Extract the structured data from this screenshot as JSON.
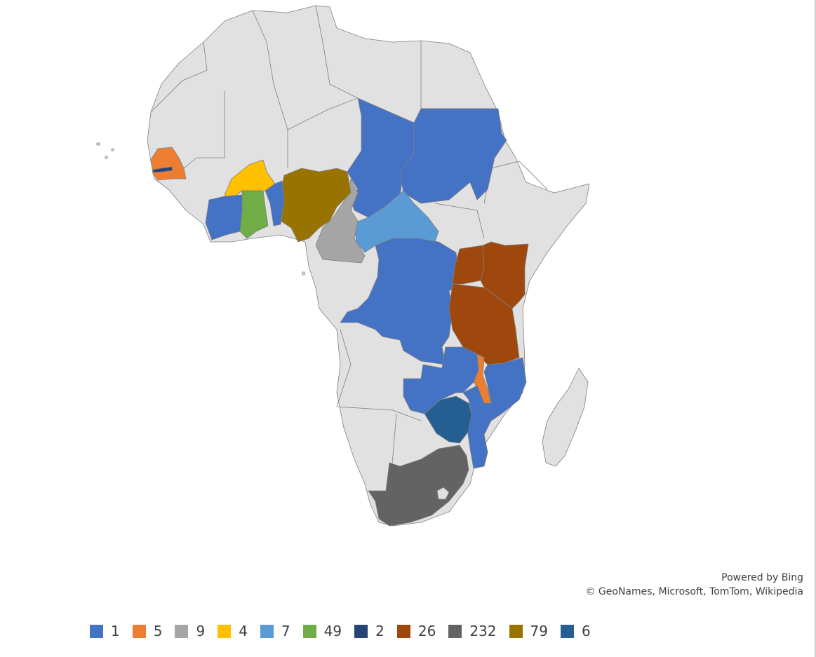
{
  "attribution": {
    "powered_by": "Powered by Bing",
    "copyright": "© GeoNames, Microsoft, TomTom, Wikipedia"
  },
  "colors": {
    "background_land": "#e1e1e1",
    "border": "#7f7f7f"
  },
  "legend": [
    {
      "label": "1",
      "color": "#4472c4"
    },
    {
      "label": "5",
      "color": "#ed7d31"
    },
    {
      "label": "9",
      "color": "#a5a5a5"
    },
    {
      "label": "4",
      "color": "#ffc000"
    },
    {
      "label": "7",
      "color": "#5b9bd5"
    },
    {
      "label": "49",
      "color": "#70ad47"
    },
    {
      "label": "2",
      "color": "#264478"
    },
    {
      "label": "26",
      "color": "#9e480e"
    },
    {
      "label": "232",
      "color": "#636363"
    },
    {
      "label": "79",
      "color": "#997300"
    },
    {
      "label": "6",
      "color": "#255e91"
    }
  ],
  "countries": [
    {
      "name": "Chad",
      "value": "1"
    },
    {
      "name": "Sudan",
      "value": "1"
    },
    {
      "name": "Democratic Republic of the Congo",
      "value": "1"
    },
    {
      "name": "Zambia",
      "value": "1"
    },
    {
      "name": "Mozambique",
      "value": "1"
    },
    {
      "name": "Côte d'Ivoire",
      "value": "1"
    },
    {
      "name": "Benin",
      "value": "1"
    },
    {
      "name": "Senegal",
      "value": "5"
    },
    {
      "name": "Malawi",
      "value": "5"
    },
    {
      "name": "Cameroon",
      "value": "9"
    },
    {
      "name": "Burkina Faso",
      "value": "4"
    },
    {
      "name": "Central African Republic",
      "value": "7"
    },
    {
      "name": "Ghana",
      "value": "49"
    },
    {
      "name": "The Gambia",
      "value": "2"
    },
    {
      "name": "Uganda",
      "value": "26"
    },
    {
      "name": "Kenya",
      "value": "26"
    },
    {
      "name": "Tanzania",
      "value": "26"
    },
    {
      "name": "South Africa",
      "value": "232"
    },
    {
      "name": "Nigeria",
      "value": "79"
    },
    {
      "name": "Zimbabwe",
      "value": "6"
    }
  ]
}
